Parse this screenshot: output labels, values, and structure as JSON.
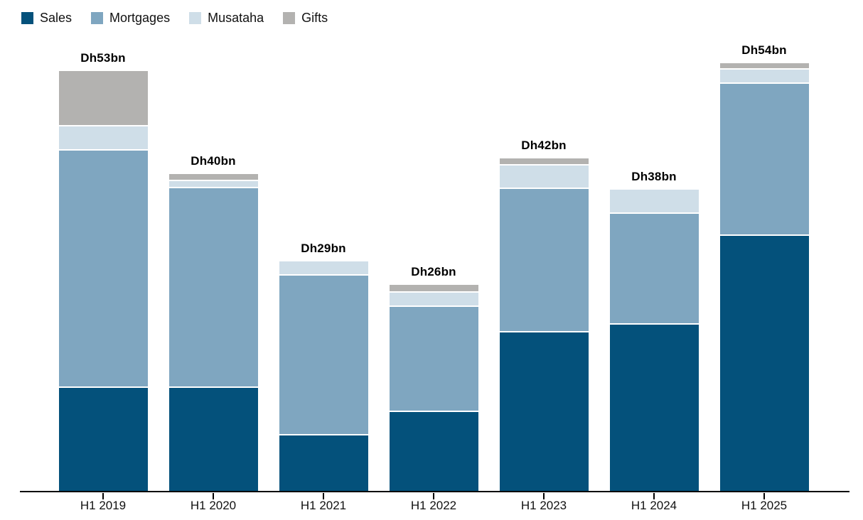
{
  "chart_data": {
    "type": "bar",
    "stacked": true,
    "title": "",
    "unit": "Dh bn (UAE dirham, billions)",
    "categories": [
      "H1 2019",
      "H1 2020",
      "H1 2021",
      "H1 2022",
      "H1 2023",
      "H1 2024",
      "H1 2025"
    ],
    "series": [
      {
        "name": "Sales",
        "color": "#04517b",
        "values": [
          13.0,
          13.0,
          7.0,
          10.0,
          20.0,
          21.0,
          32.2
        ]
      },
      {
        "name": "Mortgages",
        "color": "#7fa6c0",
        "values": [
          30.0,
          25.2,
          20.2,
          13.2,
          18.1,
          14.0,
          19.2
        ]
      },
      {
        "name": "Musataha",
        "color": "#cfdee8",
        "values": [
          3.0,
          0.9,
          1.8,
          1.8,
          3.0,
          3.0,
          1.8
        ]
      },
      {
        "name": "Gifts",
        "color": "#b3b2b0",
        "values": [
          7.0,
          0.9,
          0,
          1.0,
          0.9,
          0,
          0.8
        ]
      }
    ],
    "totals": [
      53,
      40,
      29,
      26,
      42,
      38,
      54
    ],
    "totals_labels": [
      "Dh53bn",
      "Dh40bn",
      "Dh29bn",
      "Dh26bn",
      "Dh42bn",
      "Dh38bn",
      "Dh54bn"
    ],
    "ylim": [
      0,
      58
    ],
    "grid": false,
    "legend_position": "top-left",
    "axis_color": "#000000",
    "divider_color": "#ffffff"
  }
}
